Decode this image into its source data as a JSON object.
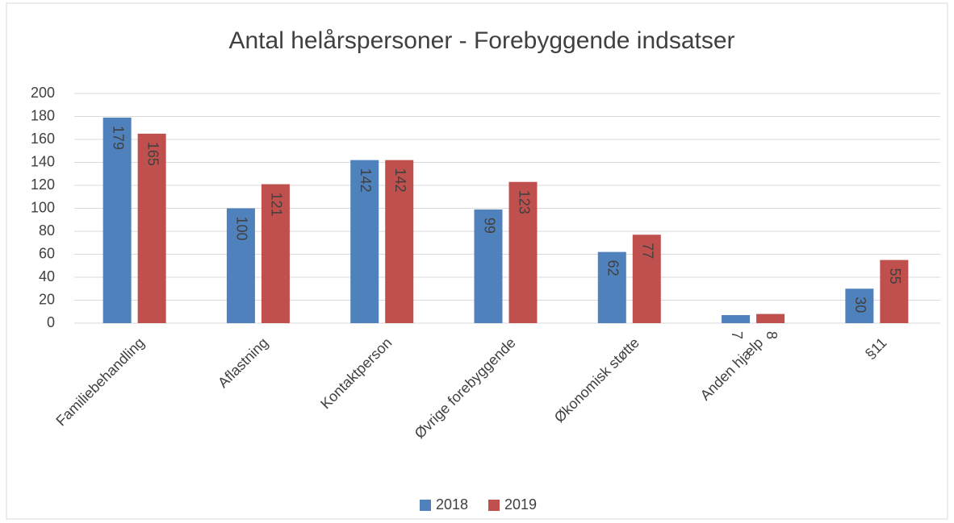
{
  "chart_data": {
    "type": "bar",
    "title": "Antal helårspersoner - Forebyggende indsatser",
    "categories": [
      "Familiebehandling",
      "Aflastning",
      "Kontaktperson",
      "Øvrige forebyggende",
      "Økonomisk støtte",
      "Anden hjælp",
      "§11"
    ],
    "series": [
      {
        "name": "2018",
        "color": "#4f81bd",
        "values": [
          179,
          100,
          142,
          99,
          62,
          7,
          30
        ]
      },
      {
        "name": "2019",
        "color": "#c0504d",
        "values": [
          165,
          121,
          142,
          123,
          77,
          8,
          55
        ]
      }
    ],
    "ylim": [
      0,
      200
    ],
    "yticks": [
      0,
      20,
      40,
      60,
      80,
      100,
      120,
      140,
      160,
      180,
      200
    ],
    "grid": true,
    "legend": "bottom"
  }
}
